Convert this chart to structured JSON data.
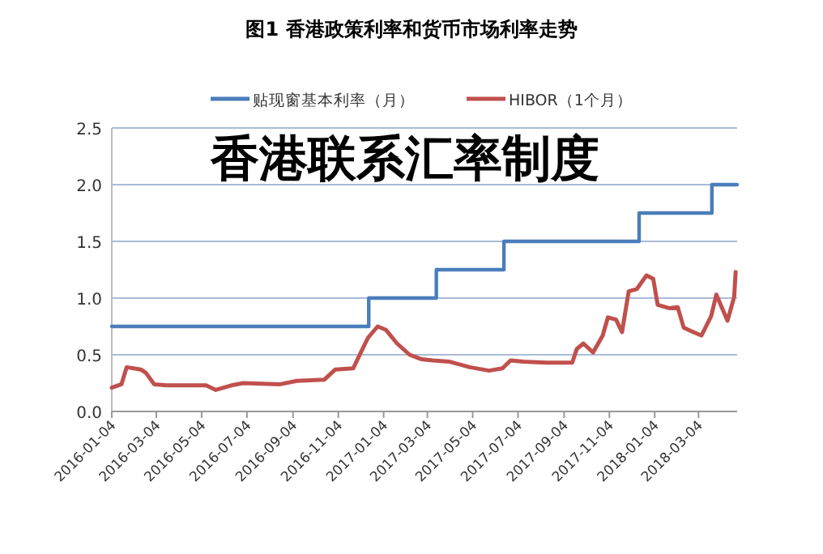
{
  "chart_data": {
    "type": "line",
    "title": "图1  香港政策利率和货币市场利率走势",
    "annotations": [
      "香港联系汇率制度"
    ],
    "legend": "top",
    "grid": "y",
    "ylim": [
      0,
      2.5
    ],
    "yticks": [
      {
        "value": 0,
        "label": "0.0"
      },
      {
        "value": 0.5,
        "label": "0.5"
      },
      {
        "value": 1,
        "label": "1.0"
      },
      {
        "value": 1.5,
        "label": "1.5"
      },
      {
        "value": 2,
        "label": "2.0"
      },
      {
        "value": 2.5,
        "label": "2.5"
      }
    ],
    "xlim": [
      "2016-01-04",
      "2018-04-25"
    ],
    "xticks": [
      "2016-01-04",
      "2016-03-04",
      "2016-05-04",
      "2016-07-04",
      "2016-09-04",
      "2016-11-04",
      "2017-01-04",
      "2017-03-04",
      "2017-05-04",
      "2017-07-04",
      "2017-09-04",
      "2017-11-04",
      "2018-01-04",
      "2018-03-04"
    ],
    "series": [
      {
        "name": "贴现窗基本利率（月）",
        "type": "step",
        "color": "#4a7ebb",
        "x": [
          "2016-01-04",
          "2016-12-15",
          "2017-03-16",
          "2017-06-15",
          "2017-12-14",
          "2018-03-22",
          "2018-04-25"
        ],
        "values": [
          0.75,
          1.0,
          1.25,
          1.5,
          1.75,
          2.0,
          2.0
        ]
      },
      {
        "name": "HIBOR（1个月）",
        "color": "#c0504d",
        "x": [
          "2016-01-04",
          "2016-01-17",
          "2016-01-24",
          "2016-02-12",
          "2016-02-19",
          "2016-03-01",
          "2016-03-18",
          "2016-05-10",
          "2016-05-23",
          "2016-06-13",
          "2016-06-29",
          "2016-08-18",
          "2016-09-09",
          "2016-10-16",
          "2016-10-31",
          "2016-11-24",
          "2016-12-05",
          "2016-12-14",
          "2016-12-27",
          "2017-01-07",
          "2017-01-22",
          "2017-02-08",
          "2017-02-24",
          "2017-03-11",
          "2017-04-02",
          "2017-04-30",
          "2017-05-26",
          "2017-06-13",
          "2017-06-24",
          "2017-07-11",
          "2017-08-11",
          "2017-09-15",
          "2017-09-21",
          "2017-09-30",
          "2017-10-13",
          "2017-10-26",
          "2017-11-02",
          "2017-11-13",
          "2017-11-21",
          "2017-11-30",
          "2017-12-11",
          "2017-12-24",
          "2018-01-02",
          "2018-01-08",
          "2018-01-24",
          "2018-02-04",
          "2018-02-12",
          "2018-02-25",
          "2018-03-08",
          "2018-03-21",
          "2018-03-28",
          "2018-04-12",
          "2018-04-21",
          "2018-04-23"
        ],
        "values": [
          0.21,
          0.24,
          0.39,
          0.37,
          0.34,
          0.24,
          0.23,
          0.23,
          0.19,
          0.23,
          0.25,
          0.24,
          0.27,
          0.28,
          0.37,
          0.38,
          0.53,
          0.65,
          0.75,
          0.72,
          0.6,
          0.5,
          0.46,
          0.45,
          0.44,
          0.39,
          0.36,
          0.38,
          0.45,
          0.44,
          0.43,
          0.43,
          0.55,
          0.6,
          0.52,
          0.67,
          0.83,
          0.81,
          0.7,
          1.06,
          1.08,
          1.2,
          1.17,
          0.94,
          0.91,
          0.92,
          0.74,
          0.7,
          0.67,
          0.84,
          1.03,
          0.8,
          1.01,
          1.23
        ]
      }
    ]
  }
}
